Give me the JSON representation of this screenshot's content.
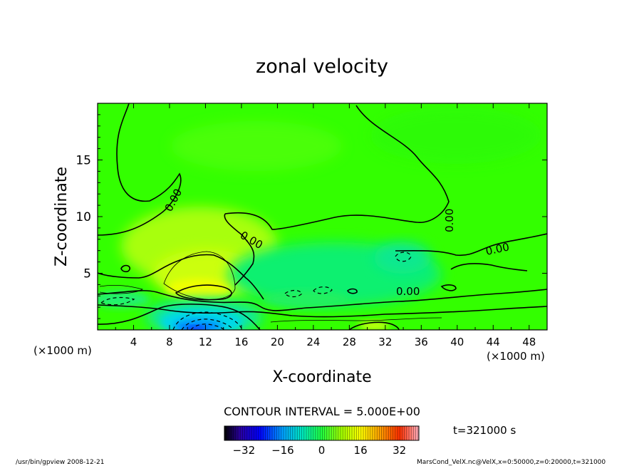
{
  "chart_data": {
    "type": "heatmap",
    "title": "zonal velocity",
    "xlabel": "X-coordinate",
    "ylabel": "Z-coordinate",
    "x_unit_left": "(×1000 m)",
    "x_unit_right": "(×1000 m)",
    "xlim": [
      0,
      50
    ],
    "ylim": [
      0,
      20
    ],
    "x_ticks": [
      "4",
      "8",
      "12",
      "16",
      "20",
      "24",
      "28",
      "32",
      "36",
      "40",
      "44",
      "48"
    ],
    "y_ticks": [
      "5",
      "10",
      "15"
    ],
    "x_tick_values": [
      4,
      8,
      12,
      16,
      20,
      24,
      28,
      32,
      36,
      40,
      44,
      48
    ],
    "y_tick_values": [
      5,
      10,
      15
    ],
    "contour_interval_text": "CONTOUR INTERVAL = 5.000E+00",
    "contour_labels": [
      "0.00",
      "0.00",
      "0.00",
      "0.00",
      "0.00"
    ],
    "colorbar": {
      "range": [
        -40,
        40
      ],
      "ticks": [
        "-32",
        "-16",
        "0",
        "16",
        "32"
      ],
      "tick_values": [
        -32,
        -16,
        0,
        16,
        32
      ]
    },
    "time_text": "t=321000 s",
    "features": [
      {
        "name": "positive core",
        "x": 12,
        "z": 3.5,
        "value": 18
      },
      {
        "name": "negative core",
        "x": 11.5,
        "z": 0.5,
        "value": -30
      }
    ],
    "grid": false
  },
  "footer": {
    "left": "/usr/bin/gpview  2008-12-21",
    "right": "MarsCond_VelX.nc@VelX,x=0:50000,z=0:20000,t=321000"
  },
  "colors": {
    "background_field": "#33ff00",
    "positive": "#ffff00",
    "negative": "#0033ff"
  }
}
